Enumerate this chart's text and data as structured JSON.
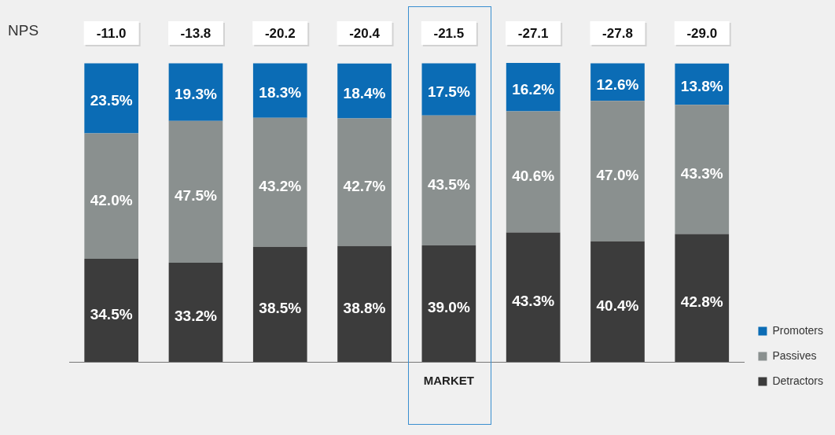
{
  "chart_data": {
    "type": "bar",
    "stacked": true,
    "categories": [
      null,
      null,
      null,
      null,
      "MARKET",
      null,
      null,
      null
    ],
    "series": [
      {
        "name": "Detractors",
        "color": "#3c3c3c",
        "values": [
          34.5,
          33.2,
          38.5,
          38.8,
          39.0,
          43.3,
          40.4,
          42.8
        ],
        "value_labels": [
          "34.5%",
          "33.2%",
          "38.5%",
          "38.8%",
          "39.0%",
          "43.3%",
          "40.4%",
          "42.8%"
        ]
      },
      {
        "name": "Passives",
        "color": "#8a908f",
        "values": [
          42.0,
          47.5,
          43.2,
          42.7,
          43.5,
          40.6,
          47.0,
          43.3
        ],
        "value_labels": [
          "42.0%",
          "47.5%",
          "43.2%",
          "42.7%",
          "43.5%",
          "40.6%",
          "47.0%",
          "43.3%"
        ]
      },
      {
        "name": "Promoters",
        "color": "#0b6cb5",
        "values": [
          23.5,
          19.3,
          18.3,
          18.4,
          17.5,
          16.2,
          12.6,
          13.8
        ],
        "value_labels": [
          "23.5%",
          "19.3%",
          "18.3%",
          "18.4%",
          "17.5%",
          "16.2%",
          "12.6%",
          "13.8%"
        ]
      }
    ],
    "annotations": [
      "NPS",
      "-11.0",
      "-13.8",
      "-20.2",
      "-20.4",
      "-21.5",
      "-27.1",
      "-27.8",
      "-29.0"
    ],
    "grid": false,
    "legend": "right"
  }
}
